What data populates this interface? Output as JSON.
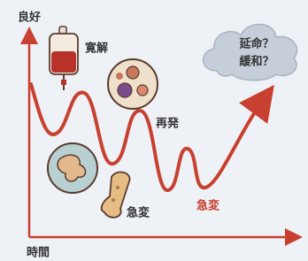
{
  "axis": {
    "y_label": "良好",
    "x_label": "時間"
  },
  "cloud": {
    "lines": [
      "延命？",
      "緩和？"
    ]
  },
  "labels": [
    "寛解",
    "再発",
    "急変",
    "急変"
  ]
}
